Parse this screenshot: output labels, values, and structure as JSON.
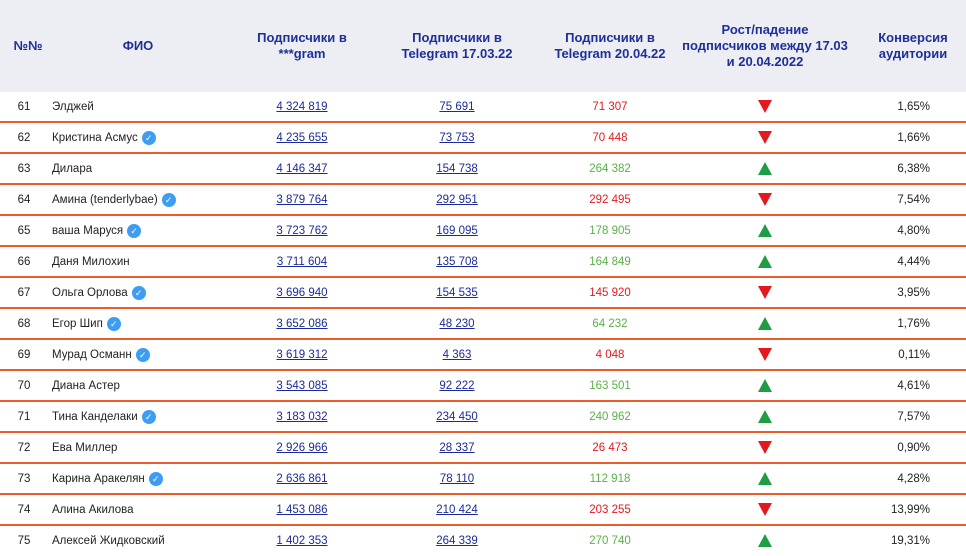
{
  "colors": {
    "header_bg": "#edeef4",
    "header_text": "#1e2f97",
    "separator": "#ea5c2a",
    "growth": "#5bb04a",
    "decline": "#e3191e",
    "badge": "#3d9df2"
  },
  "headers": {
    "num": "№№",
    "name": "ФИО",
    "gram": "Подписчики в ***gram",
    "tg17": "Подписчики в Telegram 17.03.22",
    "tg20": "Подписчики в Telegram 20.04.22",
    "trend": "Рост/падение подписчиков между 17.03 и 20.04.2022",
    "conv": "Конверсия аудитории"
  },
  "rows": [
    {
      "num": "61",
      "name": "Элджей",
      "verified": false,
      "gram": "4 324 819",
      "tg17": "75 691",
      "tg20": "71 307",
      "trend": "down",
      "conv": "1,65%"
    },
    {
      "num": "62",
      "name": "Кристина Асмус",
      "verified": true,
      "gram": "4 235 655",
      "tg17": "73 753",
      "tg20": "70 448",
      "trend": "down",
      "conv": "1,66%"
    },
    {
      "num": "63",
      "name": "Дилара",
      "verified": false,
      "gram": "4 146 347",
      "tg17": "154 738",
      "tg20": "264 382",
      "trend": "up",
      "conv": "6,38%"
    },
    {
      "num": "64",
      "name": "Амина (tenderlybae)",
      "verified": true,
      "gram": "3 879 764",
      "tg17": "292 951",
      "tg20": "292 495",
      "trend": "down",
      "conv": "7,54%"
    },
    {
      "num": "65",
      "name": "ваша Маруся",
      "verified": true,
      "gram": "3 723 762",
      "tg17": "169 095",
      "tg20": "178 905",
      "trend": "up",
      "conv": "4,80%"
    },
    {
      "num": "66",
      "name": "Даня Милохин",
      "verified": false,
      "gram": "3 711 604",
      "tg17": "135 708",
      "tg20": "164 849",
      "trend": "up",
      "conv": "4,44%"
    },
    {
      "num": "67",
      "name": "Ольга Орлова",
      "verified": true,
      "gram": "3 696 940",
      "tg17": "154 535",
      "tg20": "145 920",
      "trend": "down",
      "conv": "3,95%"
    },
    {
      "num": "68",
      "name": "Егор Шип",
      "verified": true,
      "gram": "3 652 086",
      "tg17": "48 230",
      "tg20": "64 232",
      "trend": "up",
      "conv": "1,76%"
    },
    {
      "num": "69",
      "name": "Мурад Османн",
      "verified": true,
      "gram": "3 619 312",
      "tg17": "4 363",
      "tg20": "4 048",
      "trend": "down",
      "conv": "0,11%"
    },
    {
      "num": "70",
      "name": "Диана Астер",
      "verified": false,
      "gram": "3 543 085",
      "tg17": "92 222",
      "tg20": "163 501",
      "trend": "up",
      "conv": "4,61%"
    },
    {
      "num": "71",
      "name": "Тина Канделаки",
      "verified": true,
      "gram": "3 183 032",
      "tg17": "234 450",
      "tg20": "240 962",
      "trend": "up",
      "conv": "7,57%"
    },
    {
      "num": "72",
      "name": "Ева Миллер",
      "verified": false,
      "gram": "2 926 966",
      "tg17": "28 337",
      "tg20": "26 473",
      "trend": "down",
      "conv": "0,90%"
    },
    {
      "num": "73",
      "name": "Карина Аракелян",
      "verified": true,
      "gram": "2 636 861",
      "tg17": "78 110",
      "tg20": "112 918",
      "trend": "up",
      "conv": "4,28%"
    },
    {
      "num": "74",
      "name": "Алина Акилова",
      "verified": false,
      "gram": "1 453 086",
      "tg17": "210 424",
      "tg20": "203 255",
      "trend": "down",
      "conv": "13,99%"
    },
    {
      "num": "75",
      "name": "Алексей Жидковский",
      "verified": false,
      "gram": "1 402 353",
      "tg17": "264 339",
      "tg20": "270 740",
      "trend": "up",
      "conv": "19,31%"
    }
  ]
}
